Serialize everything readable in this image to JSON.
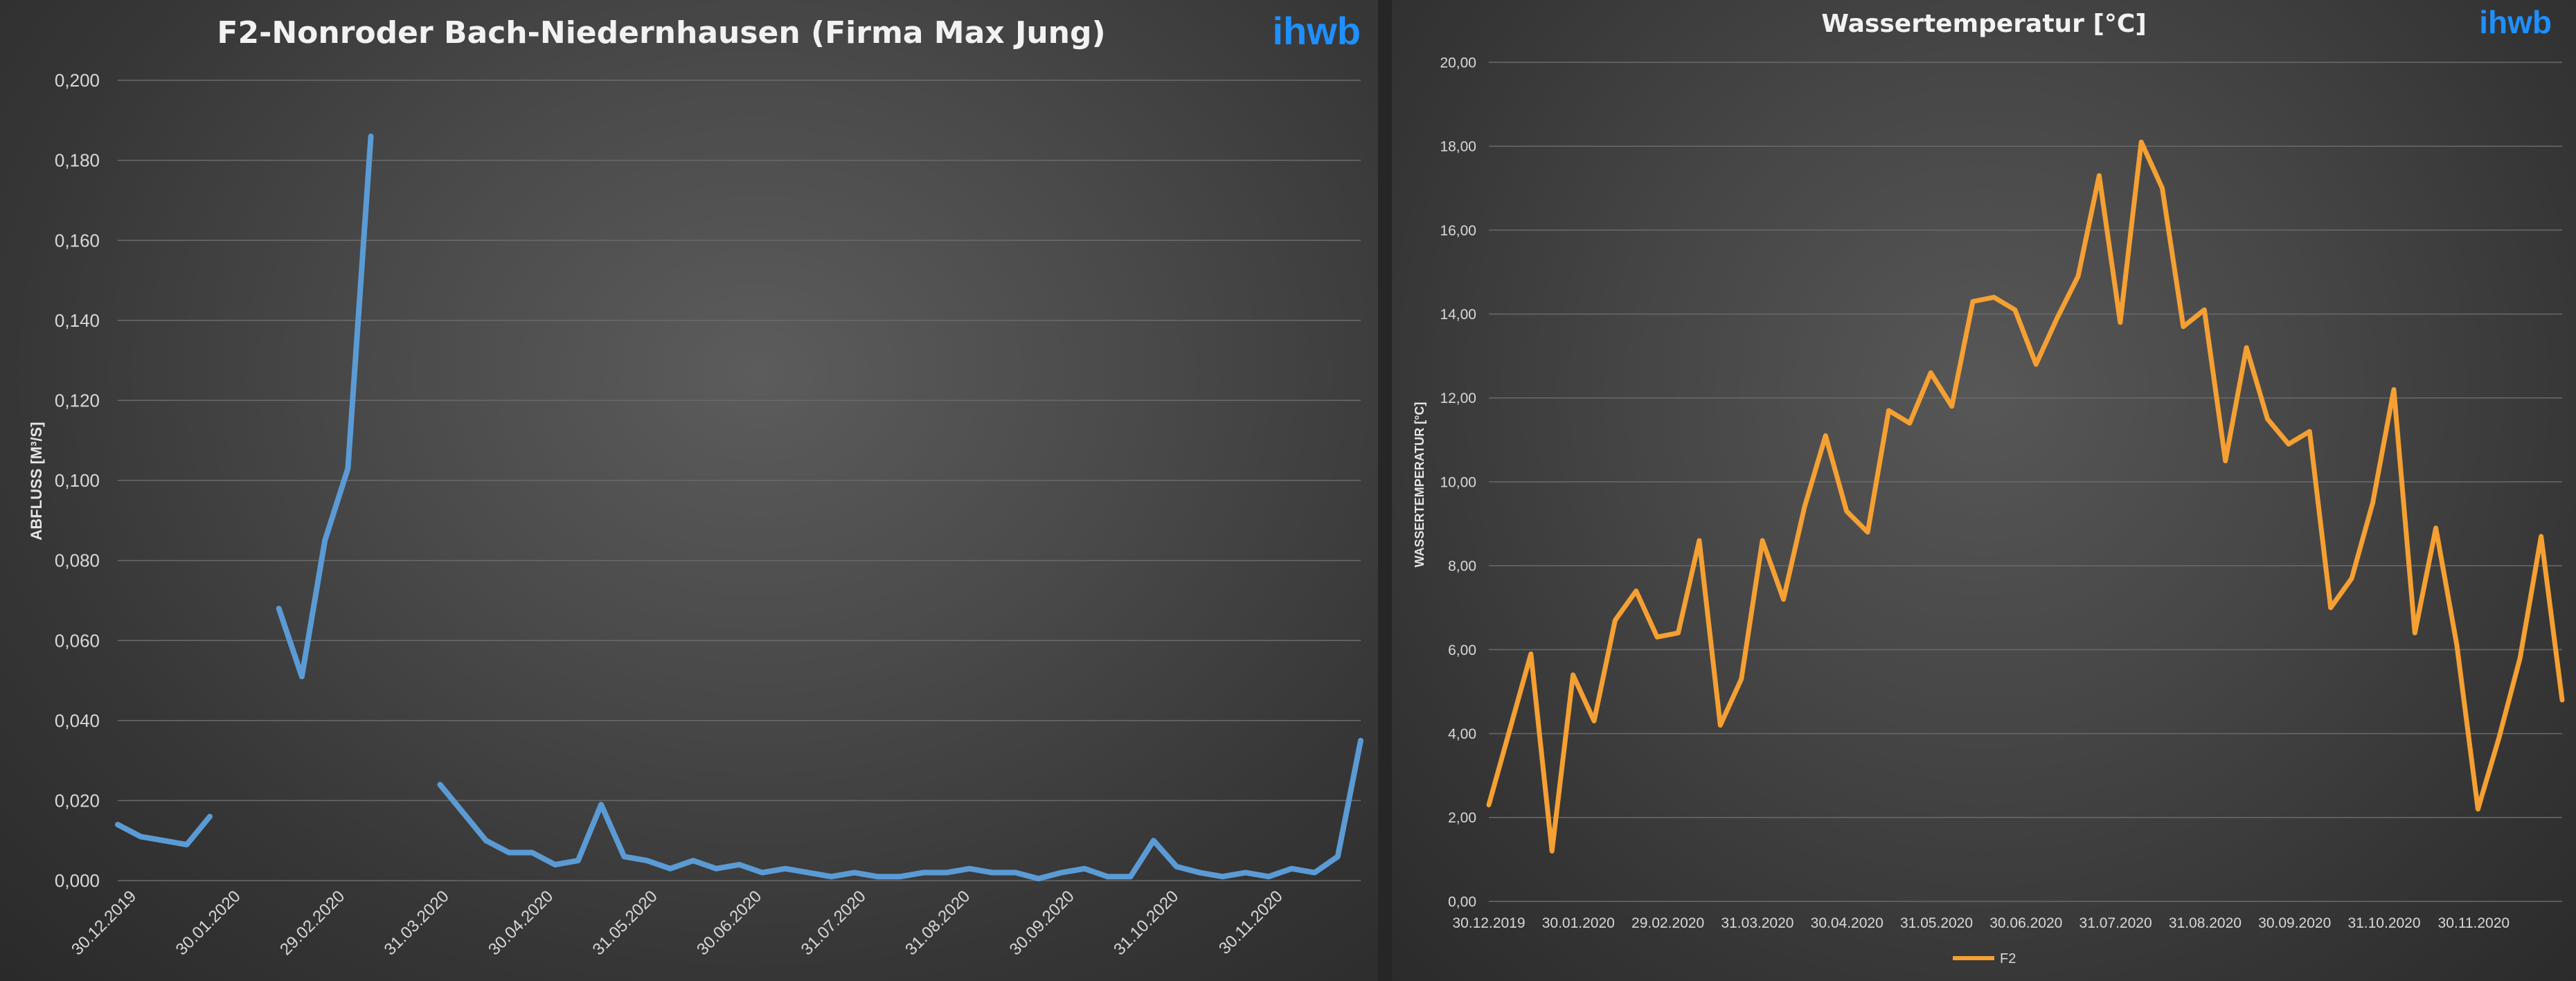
{
  "chart_data": [
    {
      "type": "line",
      "title": "F2-Nonroder Bach-Niedernhausen (Firma Max Jung)",
      "brand": "ihwb",
      "xlabel": "",
      "ylabel": "ABFLUSS [M³/S]",
      "ylim": [
        0,
        0.2
      ],
      "y_ticks": [
        "0,000",
        "0,020",
        "0,040",
        "0,060",
        "0,080",
        "0,100",
        "0,120",
        "0,140",
        "0,160",
        "0,180",
        "0,200"
      ],
      "x_ticks": [
        "30.12.2019",
        "30.01.2020",
        "29.02.2020",
        "31.03.2020",
        "30.04.2020",
        "31.05.2020",
        "30.06.2020",
        "31.07.2020",
        "31.08.2020",
        "30.09.2020",
        "31.10.2020",
        "30.11.2020"
      ],
      "grid": true,
      "legend": "none",
      "color": "#5b9bd5",
      "series": [
        {
          "values": [
            0.014,
            0.011,
            0.01,
            0.009,
            0.016,
            null,
            null,
            0.068,
            0.051,
            0.085,
            0.103,
            0.186,
            null,
            null,
            0.024,
            0.017,
            0.01,
            0.007,
            0.007,
            0.004,
            0.005,
            0.019,
            0.006,
            0.005,
            0.003,
            0.005,
            0.003,
            0.004,
            0.002,
            0.003,
            0.002,
            0.001,
            0.002,
            0.001,
            0.001,
            0.002,
            0.002,
            0.003,
            0.002,
            0.002,
            0.0005,
            0.002,
            0.003,
            0.001,
            0.001,
            0.01,
            0.0035,
            0.002,
            0.001,
            0.002,
            0.001,
            0.003,
            0.002,
            0.006,
            0.035
          ]
        }
      ]
    },
    {
      "type": "line",
      "title": "Wassertemperatur [°C]",
      "brand": "ihwb",
      "xlabel": "",
      "ylabel": "WASSERTEMPERATUR [°C]",
      "ylim": [
        0,
        20
      ],
      "y_ticks": [
        "0,00",
        "2,00",
        "4,00",
        "6,00",
        "8,00",
        "10,00",
        "12,00",
        "14,00",
        "16,00",
        "18,00",
        "20,00"
      ],
      "x_ticks": [
        "30.12.2019",
        "30.01.2020",
        "29.02.2020",
        "31.03.2020",
        "30.04.2020",
        "31.05.2020",
        "30.06.2020",
        "31.07.2020",
        "31.08.2020",
        "30.09.2020",
        "31.10.2020",
        "30.11.2020"
      ],
      "grid": true,
      "legend": "bottom-center",
      "color": "#f5a033",
      "series": [
        {
          "name": "F2",
          "values": [
            2.3,
            4.1,
            5.9,
            1.2,
            5.4,
            4.3,
            6.7,
            7.4,
            6.3,
            6.4,
            8.6,
            4.2,
            5.3,
            8.6,
            7.2,
            9.4,
            11.1,
            9.3,
            8.8,
            11.7,
            11.4,
            12.6,
            11.8,
            14.3,
            14.4,
            14.1,
            12.8,
            13.9,
            14.9,
            17.3,
            13.8,
            18.1,
            17.0,
            13.7,
            14.1,
            10.5,
            13.2,
            11.5,
            10.9,
            11.2,
            7.0,
            7.7,
            9.5,
            12.2,
            6.4,
            8.9,
            6.1,
            2.2,
            3.9,
            5.8,
            8.7,
            4.8
          ]
        }
      ]
    }
  ]
}
